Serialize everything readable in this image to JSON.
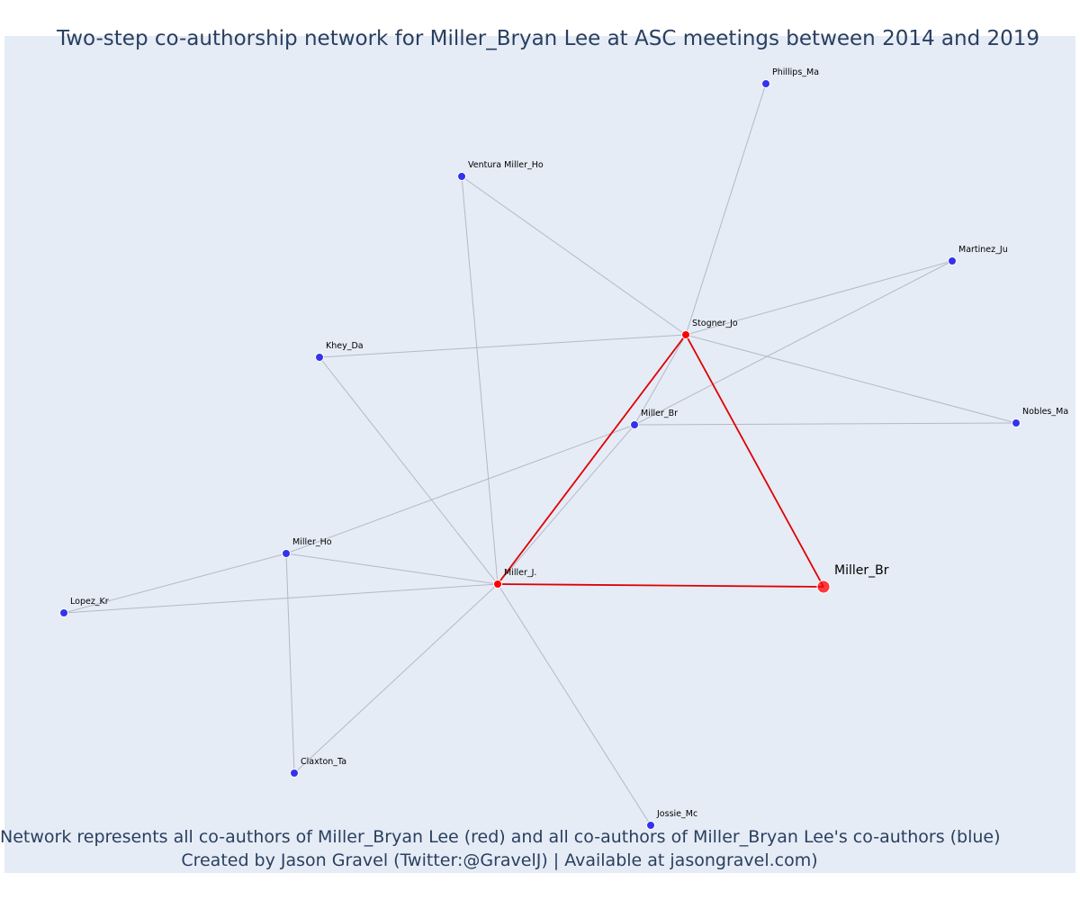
{
  "title": "Two-step co-authorship network for Miller_Bryan Lee at ASC meetings between 2014 and 2019",
  "captions": {
    "line1": "Network represents all co-authors of Miller_Bryan Lee (red) and all co-authors of Miller_Bryan Lee's co-authors (blue)",
    "line2": "Created by Jason Gravel (Twitter:@GravelJ) | Available at jasongravel.com)"
  },
  "colors": {
    "background": "#e5ecf6",
    "red_node": "#ff0000",
    "blue_node": "#3333ee",
    "red_edge": "#e00000",
    "grey_edge": "#b4b8c8",
    "text": "#2a3f5f"
  },
  "nodes": [
    {
      "id": "ego",
      "label": "Miller_Br",
      "group": "ego"
    },
    {
      "id": "stogner",
      "label": "Stogner_Jo",
      "group": "red"
    },
    {
      "id": "millerj",
      "label": "Miller_J.",
      "group": "red"
    },
    {
      "id": "phillips",
      "label": "Phillips_Ma",
      "group": "blue"
    },
    {
      "id": "ventura",
      "label": "Ventura Miller_Ho",
      "group": "blue"
    },
    {
      "id": "martinez",
      "label": "Martinez_Ju",
      "group": "blue"
    },
    {
      "id": "khey",
      "label": "Khey_Da",
      "group": "blue"
    },
    {
      "id": "millerbr2",
      "label": "Miller_Br",
      "group": "blue"
    },
    {
      "id": "nobles",
      "label": "Nobles_Ma",
      "group": "blue"
    },
    {
      "id": "millerho",
      "label": "Miller_Ho",
      "group": "blue"
    },
    {
      "id": "lopez",
      "label": "Lopez_Kr",
      "group": "blue"
    },
    {
      "id": "claxton",
      "label": "Claxton_Ta",
      "group": "blue"
    },
    {
      "id": "jossie",
      "label": "Jossie_Mc",
      "group": "blue"
    }
  ],
  "edges": [
    {
      "source": "ego",
      "target": "stogner",
      "type": "red"
    },
    {
      "source": "ego",
      "target": "millerj",
      "type": "red"
    },
    {
      "source": "stogner",
      "target": "millerj",
      "type": "red"
    },
    {
      "source": "stogner",
      "target": "phillips",
      "type": "grey"
    },
    {
      "source": "stogner",
      "target": "ventura",
      "type": "grey"
    },
    {
      "source": "stogner",
      "target": "martinez",
      "type": "grey"
    },
    {
      "source": "stogner",
      "target": "khey",
      "type": "grey"
    },
    {
      "source": "stogner",
      "target": "nobles",
      "type": "grey"
    },
    {
      "source": "stogner",
      "target": "millerbr2",
      "type": "grey"
    },
    {
      "source": "millerj",
      "target": "ventura",
      "type": "grey"
    },
    {
      "source": "millerj",
      "target": "khey",
      "type": "grey"
    },
    {
      "source": "millerj",
      "target": "millerbr2",
      "type": "grey"
    },
    {
      "source": "millerj",
      "target": "millerho",
      "type": "grey"
    },
    {
      "source": "millerj",
      "target": "lopez",
      "type": "grey"
    },
    {
      "source": "millerj",
      "target": "claxton",
      "type": "grey"
    },
    {
      "source": "millerj",
      "target": "jossie",
      "type": "grey"
    },
    {
      "source": "millerbr2",
      "target": "martinez",
      "type": "grey"
    },
    {
      "source": "millerbr2",
      "target": "nobles",
      "type": "grey"
    },
    {
      "source": "millerbr2",
      "target": "millerho",
      "type": "grey"
    },
    {
      "source": "millerho",
      "target": "lopez",
      "type": "grey"
    },
    {
      "source": "millerho",
      "target": "claxton",
      "type": "grey"
    }
  ]
}
